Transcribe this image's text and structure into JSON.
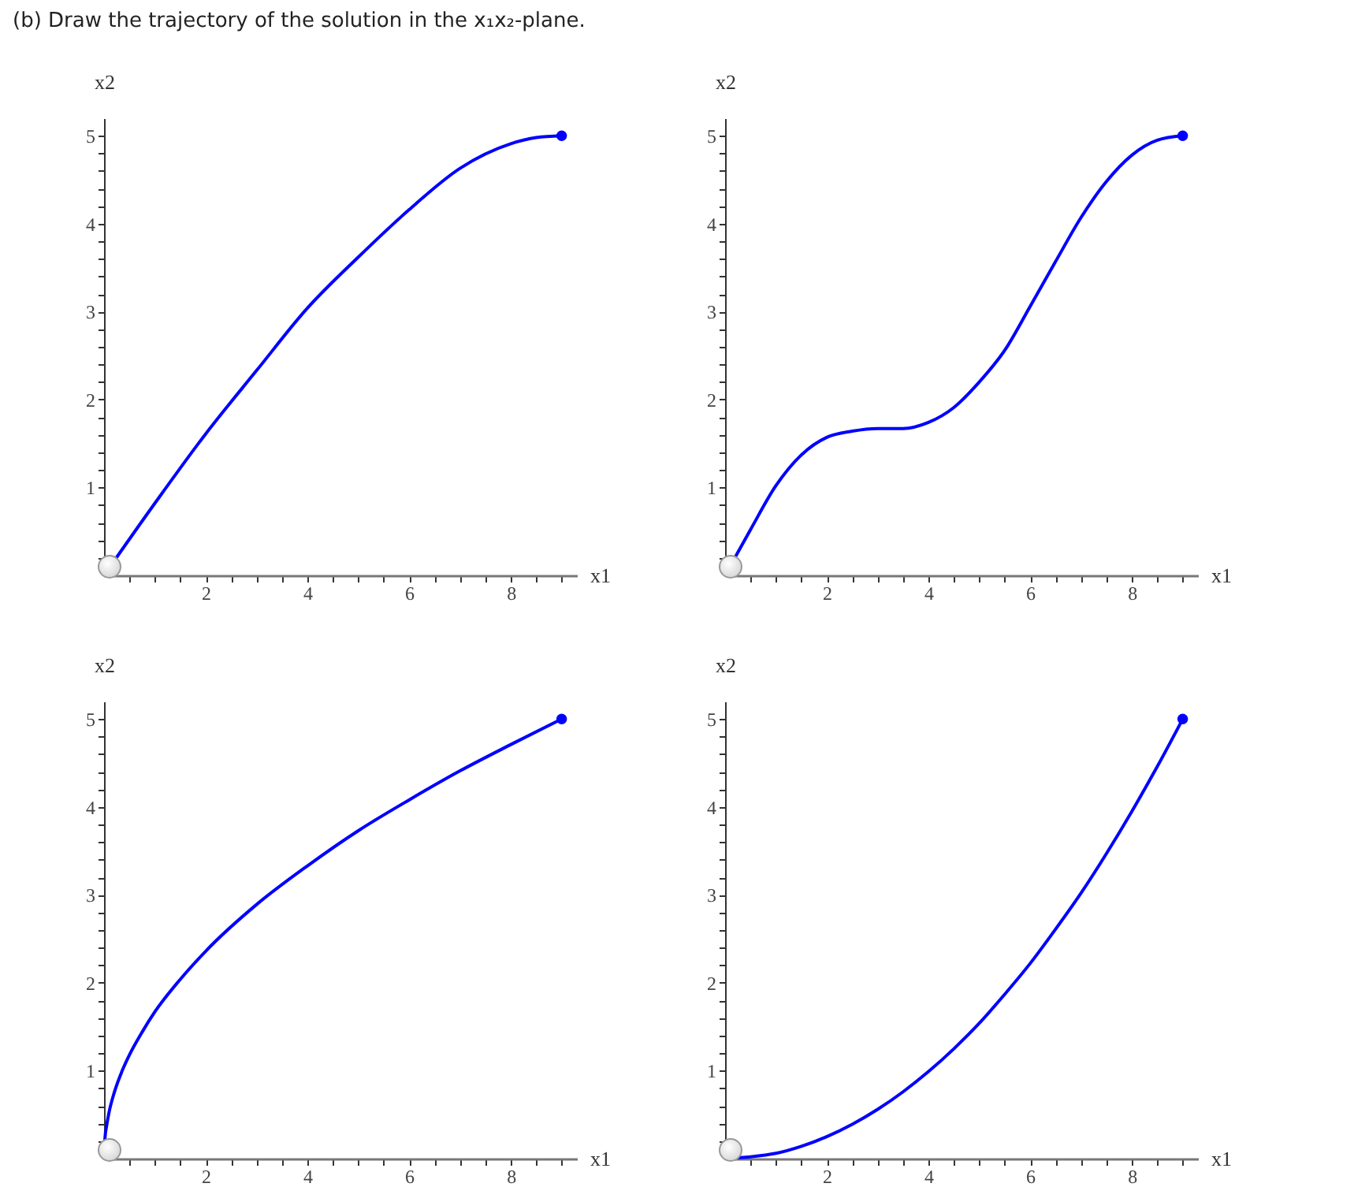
{
  "chart_data": [
    {
      "type": "line",
      "title": "(b) Draw the trajectory of the solution in the x₁x₂-plane.",
      "xlabel": "x1",
      "ylabel": "x2",
      "xlim": [
        0,
        9.3
      ],
      "ylim": [
        0,
        5.2
      ],
      "xticks": [
        {
          "value": 0.5,
          "label": null
        },
        {
          "value": 1,
          "label": null
        },
        {
          "value": 1.5,
          "label": null
        },
        2,
        {
          "value": 2.5,
          "label": null
        },
        {
          "value": 3,
          "label": null
        },
        {
          "value": 3.5,
          "label": null
        },
        4,
        {
          "value": 4.5,
          "label": null
        },
        {
          "value": 5,
          "label": null
        },
        {
          "value": 5.5,
          "label": null
        },
        6,
        {
          "value": 6.5,
          "label": null
        },
        {
          "value": 7,
          "label": null
        },
        {
          "value": 7.5,
          "label": null
        },
        8,
        {
          "value": 8.5,
          "label": null
        },
        {
          "value": 9,
          "label": null
        }
      ],
      "yticks": [
        {
          "value": 0.2,
          "label": null
        },
        {
          "value": 0.4,
          "label": null
        },
        {
          "value": 0.6,
          "label": null
        },
        {
          "value": 0.8,
          "label": null
        },
        1,
        {
          "value": 1.2,
          "label": null
        },
        {
          "value": 1.4,
          "label": null
        },
        {
          "value": 1.6,
          "label": null
        },
        {
          "value": 1.8,
          "label": null
        },
        2,
        {
          "value": 2.2,
          "label": null
        },
        {
          "value": 2.4,
          "label": null
        },
        {
          "value": 2.6,
          "label": null
        },
        {
          "value": 2.8,
          "label": null
        },
        3,
        {
          "value": 3.2,
          "label": null
        },
        {
          "value": 3.4,
          "label": null
        },
        {
          "value": 3.6,
          "label": null
        },
        {
          "value": 3.8,
          "label": null
        },
        4,
        {
          "value": 4.2,
          "label": null
        },
        {
          "value": 4.4,
          "label": null
        },
        {
          "value": 4.6,
          "label": null
        },
        {
          "value": 4.8,
          "label": null
        },
        5
      ],
      "series": [
        {
          "color": "#0000ff",
          "x": [
            0,
            1,
            2,
            3,
            4,
            5,
            6,
            7,
            8,
            8.5,
            9
          ],
          "values": [
            0,
            0.82,
            1.61,
            2.33,
            3.04,
            3.62,
            4.16,
            4.63,
            4.91,
            4.98,
            5
          ]
        },
        {
          "type": "scatter",
          "color": "#0000ff",
          "x": [
            9
          ],
          "values": [
            5
          ]
        }
      ]
    },
    {
      "type": "line",
      "xlabel": "x1",
      "ylabel": "x2",
      "xlim": [
        0,
        9.3
      ],
      "ylim": [
        0,
        5.2
      ],
      "xticks": [
        {
          "value": 0.5,
          "label": null
        },
        {
          "value": 1,
          "label": null
        },
        {
          "value": 1.5,
          "label": null
        },
        2,
        {
          "value": 2.5,
          "label": null
        },
        {
          "value": 3,
          "label": null
        },
        {
          "value": 3.5,
          "label": null
        },
        4,
        {
          "value": 4.5,
          "label": null
        },
        {
          "value": 5,
          "label": null
        },
        {
          "value": 5.5,
          "label": null
        },
        6,
        {
          "value": 6.5,
          "label": null
        },
        {
          "value": 7,
          "label": null
        },
        {
          "value": 7.5,
          "label": null
        },
        8,
        {
          "value": 8.5,
          "label": null
        },
        {
          "value": 9,
          "label": null
        }
      ],
      "yticks": [
        {
          "value": 0.2,
          "label": null
        },
        {
          "value": 0.4,
          "label": null
        },
        {
          "value": 0.6,
          "label": null
        },
        {
          "value": 0.8,
          "label": null
        },
        1,
        {
          "value": 1.2,
          "label": null
        },
        {
          "value": 1.4,
          "label": null
        },
        {
          "value": 1.6,
          "label": null
        },
        {
          "value": 1.8,
          "label": null
        },
        2,
        {
          "value": 2.2,
          "label": null
        },
        {
          "value": 2.4,
          "label": null
        },
        {
          "value": 2.6,
          "label": null
        },
        {
          "value": 2.8,
          "label": null
        },
        3,
        {
          "value": 3.2,
          "label": null
        },
        {
          "value": 3.4,
          "label": null
        },
        {
          "value": 3.6,
          "label": null
        },
        {
          "value": 3.8,
          "label": null
        },
        4,
        {
          "value": 4.2,
          "label": null
        },
        {
          "value": 4.4,
          "label": null
        },
        {
          "value": 4.6,
          "label": null
        },
        {
          "value": 4.8,
          "label": null
        },
        5
      ],
      "series": [
        {
          "color": "#0000ff",
          "x": [
            0,
            0.5,
            1,
            1.5,
            2,
            2.5,
            3,
            3.5,
            4,
            4.5,
            5,
            5.5,
            6,
            6.5,
            7,
            7.5,
            8,
            8.5,
            9
          ],
          "values": [
            0,
            0.52,
            1.02,
            1.37,
            1.57,
            1.64,
            1.67,
            1.67,
            1.74,
            1.91,
            2.2,
            2.56,
            3.06,
            3.57,
            4.07,
            4.48,
            4.78,
            4.95,
            5
          ]
        },
        {
          "type": "scatter",
          "color": "#0000ff",
          "x": [
            9
          ],
          "values": [
            5
          ]
        }
      ]
    },
    {
      "type": "line",
      "xlabel": "x1",
      "ylabel": "x2",
      "xlim": [
        0,
        9.3
      ],
      "ylim": [
        0,
        5.2
      ],
      "xticks": [
        {
          "value": 0.5,
          "label": null
        },
        {
          "value": 1,
          "label": null
        },
        {
          "value": 1.5,
          "label": null
        },
        2,
        {
          "value": 2.5,
          "label": null
        },
        {
          "value": 3,
          "label": null
        },
        {
          "value": 3.5,
          "label": null
        },
        4,
        {
          "value": 4.5,
          "label": null
        },
        {
          "value": 5,
          "label": null
        },
        {
          "value": 5.5,
          "label": null
        },
        6,
        {
          "value": 6.5,
          "label": null
        },
        {
          "value": 7,
          "label": null
        },
        {
          "value": 7.5,
          "label": null
        },
        8,
        {
          "value": 8.5,
          "label": null
        },
        {
          "value": 9,
          "label": null
        }
      ],
      "yticks": [
        {
          "value": 0.2,
          "label": null
        },
        {
          "value": 0.4,
          "label": null
        },
        {
          "value": 0.6,
          "label": null
        },
        {
          "value": 0.8,
          "label": null
        },
        1,
        {
          "value": 1.2,
          "label": null
        },
        {
          "value": 1.4,
          "label": null
        },
        {
          "value": 1.6,
          "label": null
        },
        {
          "value": 1.8,
          "label": null
        },
        2,
        {
          "value": 2.2,
          "label": null
        },
        {
          "value": 2.4,
          "label": null
        },
        {
          "value": 2.6,
          "label": null
        },
        {
          "value": 2.8,
          "label": null
        },
        3,
        {
          "value": 3.2,
          "label": null
        },
        {
          "value": 3.4,
          "label": null
        },
        {
          "value": 3.6,
          "label": null
        },
        {
          "value": 3.8,
          "label": null
        },
        4,
        {
          "value": 4.2,
          "label": null
        },
        {
          "value": 4.4,
          "label": null
        },
        {
          "value": 4.6,
          "label": null
        },
        {
          "value": 4.8,
          "label": null
        },
        5
      ],
      "series": [
        {
          "color": "#0000ff",
          "x": [
            0,
            0.02,
            0.05,
            0.1,
            0.2,
            0.35,
            0.5,
            0.75,
            1,
            1.5,
            2,
            3,
            4,
            5,
            6,
            7,
            8,
            9
          ],
          "values": [
            0,
            0.24,
            0.37,
            0.53,
            0.75,
            0.99,
            1.18,
            1.44,
            1.67,
            2.04,
            2.36,
            2.89,
            3.33,
            3.73,
            4.08,
            4.41,
            4.71,
            5
          ]
        },
        {
          "type": "scatter",
          "color": "#0000ff",
          "x": [
            9
          ],
          "values": [
            5
          ]
        }
      ]
    },
    {
      "type": "line",
      "xlabel": "x1",
      "ylabel": "x2",
      "xlim": [
        0,
        9.3
      ],
      "ylim": [
        0,
        5.2
      ],
      "xticks": [
        {
          "value": 0.5,
          "label": null
        },
        {
          "value": 1,
          "label": null
        },
        {
          "value": 1.5,
          "label": null
        },
        2,
        {
          "value": 2.5,
          "label": null
        },
        {
          "value": 3,
          "label": null
        },
        {
          "value": 3.5,
          "label": null
        },
        4,
        {
          "value": 4.5,
          "label": null
        },
        {
          "value": 5,
          "label": null
        },
        {
          "value": 5.5,
          "label": null
        },
        6,
        {
          "value": 6.5,
          "label": null
        },
        {
          "value": 7,
          "label": null
        },
        {
          "value": 7.5,
          "label": null
        },
        8,
        {
          "value": 8.5,
          "label": null
        },
        {
          "value": 9,
          "label": null
        }
      ],
      "yticks": [
        {
          "value": 0.2,
          "label": null
        },
        {
          "value": 0.4,
          "label": null
        },
        {
          "value": 0.6,
          "label": null
        },
        {
          "value": 0.8,
          "label": null
        },
        1,
        {
          "value": 1.2,
          "label": null
        },
        {
          "value": 1.4,
          "label": null
        },
        {
          "value": 1.6,
          "label": null
        },
        {
          "value": 1.8,
          "label": null
        },
        2,
        {
          "value": 2.2,
          "label": null
        },
        {
          "value": 2.4,
          "label": null
        },
        {
          "value": 2.6,
          "label": null
        },
        {
          "value": 2.8,
          "label": null
        },
        3,
        {
          "value": 3.2,
          "label": null
        },
        {
          "value": 3.4,
          "label": null
        },
        {
          "value": 3.6,
          "label": null
        },
        {
          "value": 3.8,
          "label": null
        },
        4,
        {
          "value": 4.2,
          "label": null
        },
        {
          "value": 4.4,
          "label": null
        },
        {
          "value": 4.6,
          "label": null
        },
        {
          "value": 4.8,
          "label": null
        },
        5
      ],
      "series": [
        {
          "color": "#0000ff",
          "x": [
            0,
            0.5,
            1,
            1.5,
            2,
            2.5,
            3,
            3.5,
            4,
            4.5,
            5,
            5.5,
            6,
            6.5,
            7,
            7.5,
            8,
            8.5,
            9
          ],
          "values": [
            0,
            0.02,
            0.06,
            0.14,
            0.25,
            0.39,
            0.56,
            0.76,
            0.99,
            1.25,
            1.54,
            1.87,
            2.22,
            2.61,
            3.02,
            3.47,
            3.95,
            4.46,
            5
          ]
        },
        {
          "type": "scatter",
          "color": "#0000ff",
          "x": [
            9
          ],
          "values": [
            5
          ]
        }
      ]
    }
  ]
}
